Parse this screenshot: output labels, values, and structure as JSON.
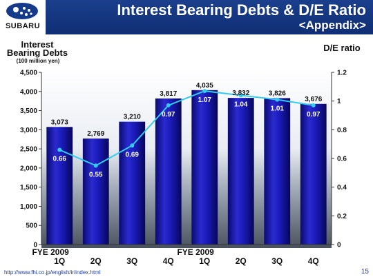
{
  "header": {
    "logo_text": "SUBARU",
    "title": "Interest Bearing Debts & D/E Ratio",
    "subtitle": "<Appendix>"
  },
  "footer": {
    "url": "http://www.fhi.co.jp/english/ir/index.html",
    "page": "15"
  },
  "colors": {
    "header_bg": "#163a8a",
    "bar": "#1a1ab0",
    "line": "#33ccee"
  },
  "chart_data": {
    "type": "bar",
    "left_axis_title": "Interest\nBearing Debts",
    "left_axis_unit": "(100 million yen)",
    "right_axis_title": "D/E ratio",
    "categories": [
      "1Q",
      "2Q",
      "3Q",
      "4Q",
      "1Q",
      "2Q",
      "3Q",
      "4Q"
    ],
    "category_groups": [
      {
        "label": "FYE 2009",
        "start_index": 0
      },
      {
        "label": "FYE 2009",
        "start_index": 4
      }
    ],
    "series": [
      {
        "type": "bar",
        "axis": "left",
        "values": [
          3073,
          2769,
          3210,
          3817,
          4035,
          3832,
          3826,
          3676
        ],
        "labels": [
          "3,073",
          "2,769",
          "3,210",
          "3,817",
          "4,035",
          "3,832",
          "3,826",
          "3,676"
        ]
      },
      {
        "type": "line",
        "axis": "right",
        "values": [
          0.66,
          0.55,
          0.69,
          0.97,
          1.07,
          1.04,
          1.01,
          0.97
        ],
        "labels": [
          "0.66",
          "0.55",
          "0.69",
          "0.97",
          "1.07",
          "1.04",
          "1.01",
          "0.97"
        ]
      }
    ],
    "ylim": [
      0,
      4500
    ],
    "yticks": [
      0,
      500,
      1000,
      1500,
      2000,
      2500,
      3000,
      3500,
      4000,
      4500
    ],
    "ytick_labels": [
      "0",
      "500",
      "1,000",
      "1,500",
      "2,000",
      "2,500",
      "3,000",
      "3,500",
      "4,000",
      "4,500"
    ],
    "y2lim": [
      0,
      1.2
    ],
    "y2ticks": [
      0,
      0.2,
      0.4,
      0.6,
      0.8,
      1.0,
      1.2
    ],
    "y2tick_labels": [
      "0",
      "0.2",
      "0.4",
      "0.6",
      "0.8",
      "1",
      "1.2"
    ],
    "grid": false
  }
}
